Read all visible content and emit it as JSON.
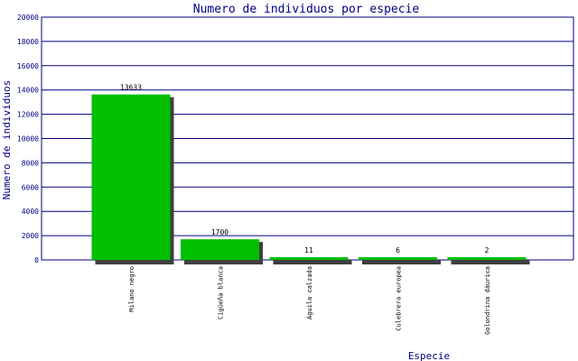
{
  "chart_data": {
    "type": "bar",
    "title": "Numero de individuos por especie",
    "xlabel": "Especie",
    "ylabel": "Numero de individuos",
    "ylim": [
      0,
      20000
    ],
    "yticks": [
      0,
      2000,
      4000,
      6000,
      8000,
      10000,
      12000,
      14000,
      16000,
      18000,
      20000
    ],
    "categories": [
      "Milano negro",
      "Cigüeña blanca",
      "Águila calzada",
      "Culebrera europea",
      "Golondrina dáurica"
    ],
    "values": [
      13633,
      1700,
      11,
      6,
      2
    ],
    "data_labels": [
      "13633",
      "1700",
      "11",
      "6",
      "2"
    ],
    "grid": true,
    "colors": {
      "bar": "#00bf00",
      "shadow": "#3f3f3f",
      "axis_text": "#000080",
      "gridline": "#000080",
      "label": "#000000"
    }
  }
}
